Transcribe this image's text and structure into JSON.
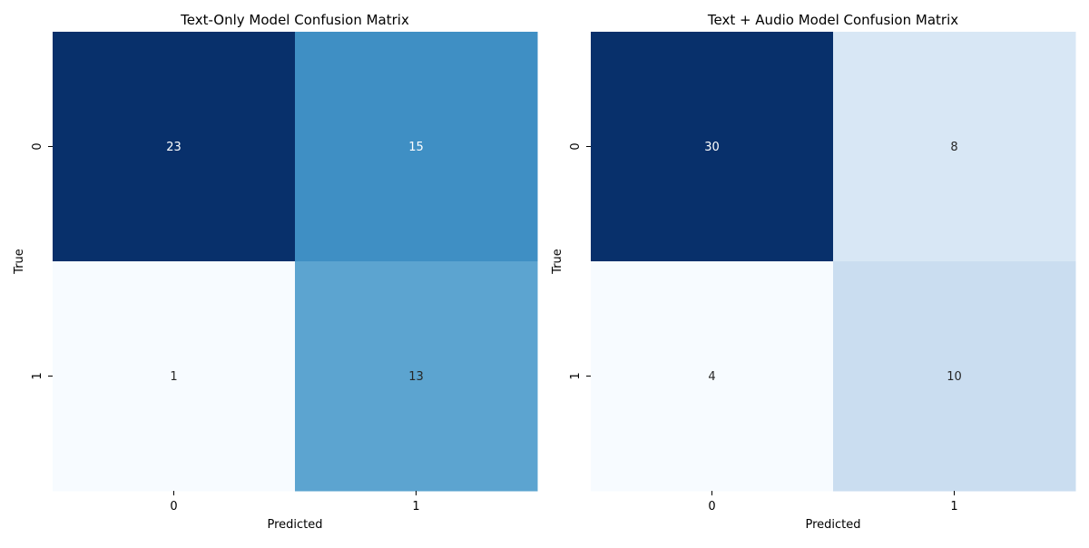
{
  "chart_data": [
    {
      "type": "heatmap",
      "title": "Text-Only Model Confusion Matrix",
      "xlabel": "Predicted",
      "ylabel": "True",
      "x_categories": [
        "0",
        "1"
      ],
      "y_categories": [
        "0",
        "1"
      ],
      "values": [
        [
          23,
          15
        ],
        [
          1,
          13
        ]
      ],
      "colormap": "Blues",
      "color_range": [
        1,
        23
      ],
      "colorbar": false
    },
    {
      "type": "heatmap",
      "title": "Text + Audio Model Confusion Matrix",
      "xlabel": "Predicted",
      "ylabel": "True",
      "x_categories": [
        "0",
        "1"
      ],
      "y_categories": [
        "0",
        "1"
      ],
      "values": [
        [
          30,
          8
        ],
        [
          4,
          10
        ]
      ],
      "colormap": "Blues",
      "color_range": [
        4,
        30
      ],
      "colorbar": false
    }
  ]
}
